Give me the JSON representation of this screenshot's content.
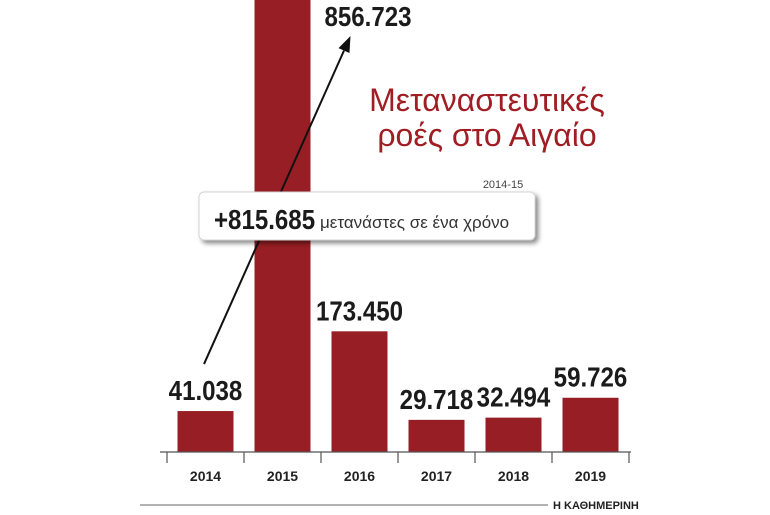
{
  "chart_data": {
    "type": "bar",
    "title": "Μεταναστευτικές ροές στο Αιγαίο",
    "xlabel": "",
    "ylabel": "",
    "categories": [
      "2014",
      "2015",
      "2016",
      "2017",
      "2018",
      "2019"
    ],
    "values": [
      41038,
      856723,
      173450,
      29718,
      32494,
      59726
    ],
    "value_labels": [
      "41.038",
      "856.723",
      "173.450",
      "29.718",
      "32.494",
      "59.726"
    ],
    "annotation": {
      "period": "2014-15",
      "change": "+815.685",
      "text": "μετανάστες σε ένα χρόνο"
    },
    "grid": false,
    "colors": {
      "bar": "#971e24",
      "title": "#a01d24"
    }
  },
  "source": "Η ΚΑΘΗΜΕΡΙΝΗ"
}
